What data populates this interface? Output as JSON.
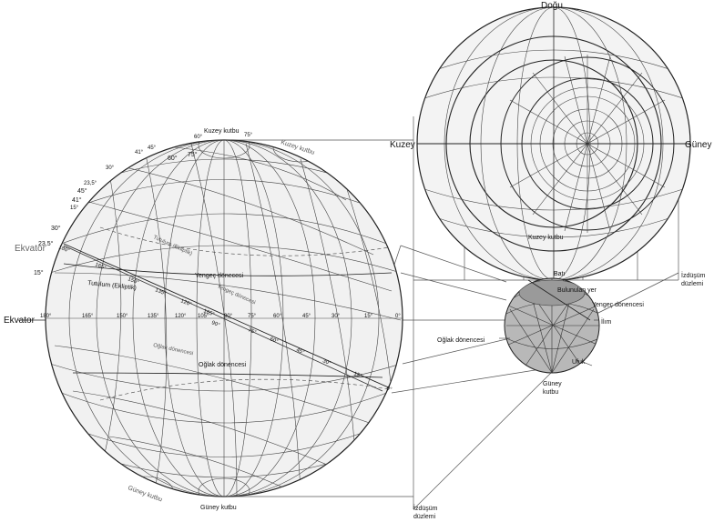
{
  "left_labels": {
    "kuzey_kutbu_top": "Kuzey kutbu",
    "kuzey_kutbu_tilted": "Kuzey kutbu",
    "guney_kutbu_bottom": "Güney kutbu",
    "guney_kutbu_tilted": "Güney kutbu",
    "ekvator": "Ekvator",
    "ekvator_tilted": "Ekvator",
    "tutulum_tilted": "Tutulum (Ekliptik)",
    "tutulum": "Tutulum (Ekliptik)",
    "yengec_tilted": "Yengeç dönecesi",
    "yengec": "Yengeç dönecesi",
    "oglak_tilted": "Oğlak dönencesi",
    "oglak": "Oğlak dönencesi"
  },
  "left_angles": {
    "ekvator_row": [
      "180°",
      "165°",
      "150°",
      "135°",
      "120°",
      "105°",
      "90°",
      "75°",
      "60°",
      "45°",
      "30°",
      "15°",
      "0°"
    ],
    "tilted_row_upper": [
      "180°",
      "165°",
      "150°",
      "135°",
      "120°",
      "105°"
    ],
    "tilted_row_lower": [
      "90°",
      "75°",
      "60°",
      "45°",
      "30°",
      "15°",
      "0°"
    ],
    "top_arc": [
      "60°",
      "75°",
      "75°",
      "60°",
      "45°",
      "41°",
      "30°",
      "23,5°",
      "45°",
      "41°",
      "15°",
      "30°",
      "23,5°",
      "15°"
    ]
  },
  "right_top": {
    "dogu": "Doğu",
    "kuzey": "Kuzey",
    "guney": "Güney",
    "kuzey_kutbu": "Kuzey kutbu"
  },
  "small_globe": {
    "bati": "Batı",
    "bulunulan_yer": "Bulunulan yer",
    "yengec": "Yengeç dönencesi",
    "ilim": "İlım",
    "oglak": "Oğlak dönencesi",
    "ufuk": "Ufuk",
    "guney_kutbu": "Güney kutbu"
  },
  "projection": {
    "right": "İzdüşüm düzlemi",
    "bottom": "İzdüşüm düzlemi"
  },
  "colors": {
    "stroke": "#222222",
    "fill_light": "#f2f2f2",
    "globe_fill": "#b5b5b5"
  }
}
